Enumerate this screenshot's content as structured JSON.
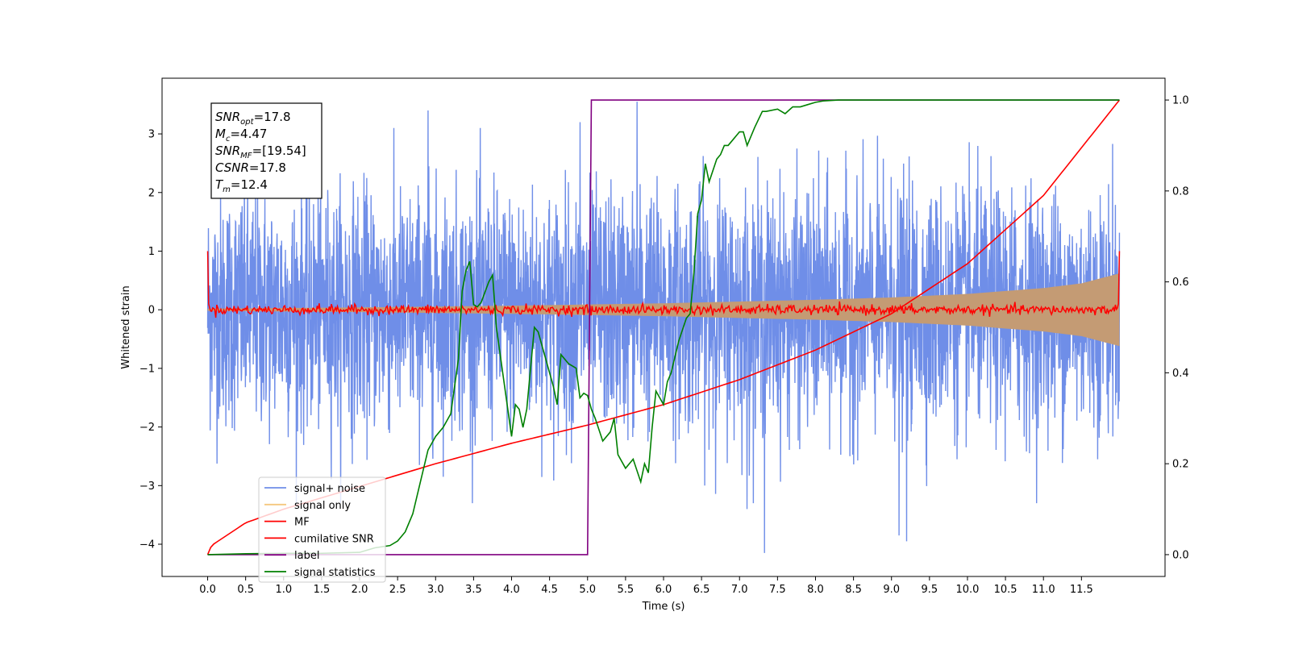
{
  "chart_data": {
    "type": "line",
    "xlabel": "Time (s)",
    "ylabel": "Whitened strain",
    "xlim": [
      -0.6,
      12.6
    ],
    "ylim": [
      -4.55,
      3.95
    ],
    "y2lim": [
      -0.048,
      1.048
    ],
    "grid": false,
    "legend_position": "lower-left",
    "x_ticks": [
      "0.0",
      "0.5",
      "1.0",
      "1.5",
      "2.0",
      "2.5",
      "3.0",
      "3.5",
      "4.0",
      "4.5",
      "5.0",
      "5.5",
      "6.0",
      "6.5",
      "7.0",
      "7.5",
      "8.0",
      "8.5",
      "9.0",
      "9.5",
      "10.0",
      "10.5",
      "11.0",
      "11.5"
    ],
    "y_ticks": [
      "3",
      "2",
      "1",
      "0",
      "−1",
      "−2",
      "−3",
      "−4"
    ],
    "y2_ticks": [
      "1.0",
      "0.8",
      "0.6",
      "0.4",
      "0.2",
      "0.0"
    ],
    "info_box": [
      {
        "main": "SNR",
        "sub": "opt",
        "value": "=17.8"
      },
      {
        "main": "M",
        "sub": "c",
        "value": "=4.47"
      },
      {
        "main": "SNR",
        "sub": "MF",
        "value": "=[19.54]"
      },
      {
        "main": "CSNR",
        "sub": "",
        "value": "=17.8"
      },
      {
        "main": "T",
        "sub": "m",
        "value": "=12.4"
      }
    ],
    "series": [
      {
        "name": "signal+ noise",
        "axis": "left",
        "color": "#6f8ee8",
        "kind": "noise",
        "x_range": [
          0,
          12.0
        ],
        "amplitude_std": 1.0,
        "peaks": [
          [
            2.9,
            3.4
          ],
          [
            5.65,
            3.55
          ],
          [
            7.33,
            -4.15
          ],
          [
            9.1,
            -3.85
          ],
          [
            9.2,
            -3.95
          ],
          [
            7.1,
            -3.4
          ],
          [
            4.9,
            3.2
          ]
        ]
      },
      {
        "name": "signal only",
        "axis": "left",
        "color": "#f5c77e",
        "kind": "envelope",
        "envelope": {
          "x": [
            0,
            2,
            4,
            6,
            8,
            9,
            10,
            11,
            11.5,
            12.0
          ],
          "amp": [
            0.02,
            0.04,
            0.07,
            0.11,
            0.17,
            0.21,
            0.27,
            0.37,
            0.45,
            0.62
          ]
        }
      },
      {
        "name": "MF",
        "axis": "left",
        "color": "#ff0000",
        "kind": "mf",
        "x_range": [
          0,
          12.0
        ],
        "edge_values": [
          1.0,
          1.0
        ],
        "noise_std": 0.04
      },
      {
        "name": "cumilative SNR",
        "axis": "right",
        "color": "#ff0000",
        "x": [
          0,
          0.05,
          0.5,
          1,
          2,
          3,
          4,
          5,
          6,
          7,
          8,
          9,
          10,
          11,
          12.0
        ],
        "values": [
          0.0,
          0.02,
          0.07,
          0.1,
          0.15,
          0.2,
          0.245,
          0.285,
          0.33,
          0.385,
          0.45,
          0.53,
          0.64,
          0.79,
          1.0
        ]
      },
      {
        "name": "label",
        "axis": "right",
        "color": "#800080",
        "x": [
          0,
          5.0,
          5.05,
          12.0
        ],
        "values": [
          0.0,
          0.0,
          1.0,
          1.0
        ]
      },
      {
        "name": "signal statistics",
        "axis": "right",
        "color": "#008000",
        "x": [
          0,
          0.5,
          1.0,
          1.5,
          2.0,
          2.2,
          2.4,
          2.5,
          2.6,
          2.7,
          2.8,
          2.9,
          3.0,
          3.1,
          3.2,
          3.3,
          3.35,
          3.4,
          3.45,
          3.5,
          3.55,
          3.6,
          3.7,
          3.75,
          3.8,
          3.9,
          4.0,
          4.05,
          4.1,
          4.15,
          4.2,
          4.3,
          4.35,
          4.45,
          4.55,
          4.6,
          4.65,
          4.75,
          4.85,
          4.9,
          4.95,
          5.0,
          5.05,
          5.1,
          5.2,
          5.3,
          5.35,
          5.4,
          5.5,
          5.55,
          5.6,
          5.7,
          5.75,
          5.8,
          5.85,
          5.9,
          6.0,
          6.05,
          6.1,
          6.2,
          6.3,
          6.35,
          6.4,
          6.45,
          6.5,
          6.55,
          6.6,
          6.7,
          6.75,
          6.8,
          6.85,
          6.9,
          7.0,
          7.05,
          7.1,
          7.15,
          7.2,
          7.3,
          7.35,
          7.5,
          7.6,
          7.7,
          7.8,
          7.9,
          8.0,
          8.1,
          8.3,
          8.5,
          8.7,
          9.0,
          9.5,
          10.0,
          11.0,
          12.0
        ],
        "values": [
          0.0,
          0.002,
          0.003,
          0.003,
          0.005,
          0.015,
          0.02,
          0.03,
          0.05,
          0.09,
          0.16,
          0.23,
          0.26,
          0.28,
          0.31,
          0.43,
          0.58,
          0.625,
          0.645,
          0.55,
          0.545,
          0.555,
          0.6,
          0.615,
          0.5,
          0.38,
          0.26,
          0.33,
          0.32,
          0.28,
          0.32,
          0.5,
          0.49,
          0.43,
          0.37,
          0.33,
          0.44,
          0.42,
          0.41,
          0.345,
          0.355,
          0.35,
          0.32,
          0.3,
          0.25,
          0.27,
          0.3,
          0.22,
          0.19,
          0.2,
          0.21,
          0.16,
          0.2,
          0.18,
          0.28,
          0.36,
          0.33,
          0.38,
          0.4,
          0.47,
          0.52,
          0.53,
          0.62,
          0.75,
          0.78,
          0.86,
          0.82,
          0.87,
          0.88,
          0.9,
          0.9,
          0.91,
          0.93,
          0.93,
          0.9,
          0.92,
          0.94,
          0.975,
          0.975,
          0.98,
          0.97,
          0.985,
          0.985,
          0.99,
          0.995,
          0.998,
          1.0,
          1.0,
          1.0,
          1.0,
          1.0,
          1.0,
          1.0,
          1.0
        ]
      }
    ]
  }
}
